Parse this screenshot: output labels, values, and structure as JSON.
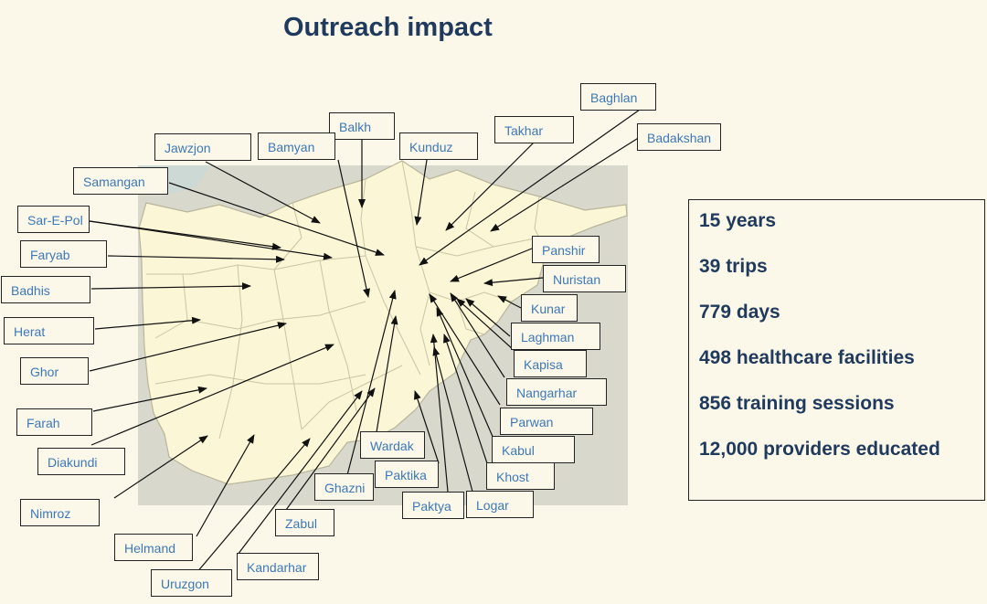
{
  "title": "Outreach impact",
  "colors": {
    "title": "#1f3a5c",
    "label_text": "#3d78b8",
    "map_land": "#fbf7d6",
    "map_neighbors": "#d8d8cc",
    "map_water": "#a9c7dc",
    "province_border": "#c9c4a3",
    "arrow": "#111111"
  },
  "stats": [
    "15 years",
    "39 trips",
    "779 days",
    "498 healthcare facilities",
    "856 training sessions",
    "12,000 providers educated"
  ],
  "provinces": [
    "Baghlan",
    "Takhar",
    "Badakshan",
    "Balkh",
    "Kunduz",
    "Bamyan",
    "Jawzjon",
    "Samangan",
    "Sar-E-Pol",
    "Faryab",
    "Badhis",
    "Herat",
    "Ghor",
    "Farah",
    "Diakundi",
    "Nimroz",
    "Helmand",
    "Uruzgon",
    "Kandarhar",
    "Zabul",
    "Ghazni",
    "Wardak",
    "Paktika",
    "Paktya",
    "Logar",
    "Khost",
    "Kabul",
    "Parwan",
    "Nangarhar",
    "Kapisa",
    "Laghman",
    "Kunar",
    "Nuristan",
    "Panshir"
  ]
}
